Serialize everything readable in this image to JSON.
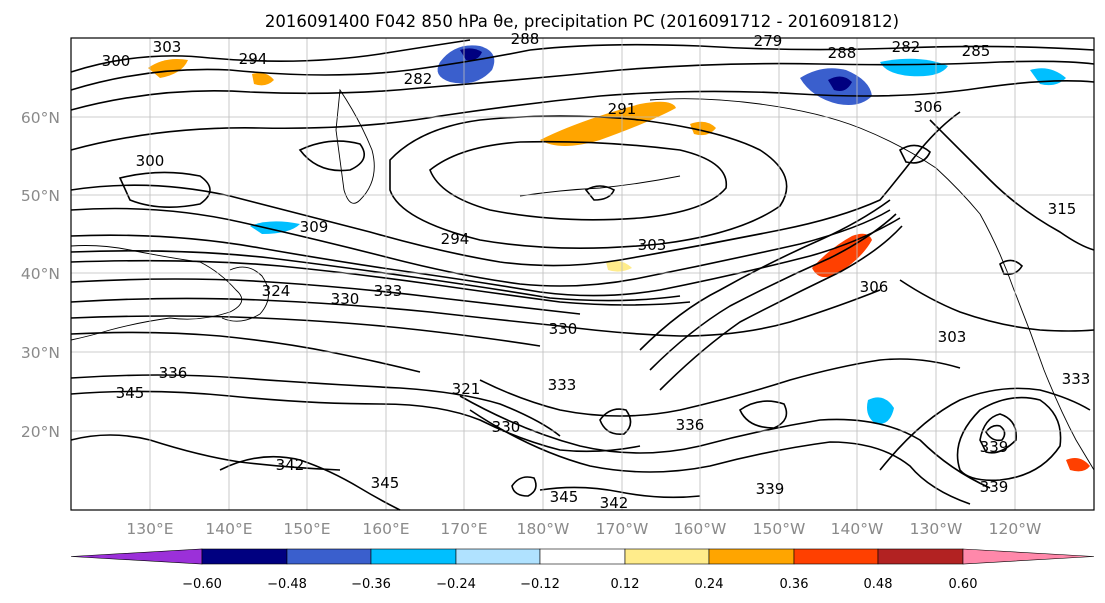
{
  "title": "2016091400 F042 850 hPa θe, precipitation PC (2016091712 - 2016091812)",
  "map": {
    "lat_labels": [
      "60°N",
      "50°N",
      "40°N",
      "30°N",
      "20°N"
    ],
    "lon_labels": [
      "130°E",
      "140°E",
      "150°E",
      "160°E",
      "170°E",
      "180°W",
      "170°W",
      "160°W",
      "150°W",
      "140°W",
      "130°W",
      "120°W"
    ],
    "contour_labels": [
      "303",
      "300",
      "288",
      "294",
      "282",
      "279",
      "288",
      "282",
      "285",
      "306",
      "300",
      "291",
      "309",
      "294",
      "303",
      "315",
      "330",
      "324",
      "333",
      "330",
      "336",
      "345",
      "321",
      "330",
      "336",
      "333",
      "342",
      "345",
      "345",
      "342",
      "339",
      "339",
      "303",
      "306",
      "333",
      "339"
    ]
  },
  "colorbar": {
    "colors": [
      "#9b30d9",
      "#000080",
      "#3a5fcd",
      "#00bfff",
      "#b0e2ff",
      "#ffffff",
      "#ffec8b",
      "#ffa500",
      "#ff4000",
      "#b22222",
      "#ff88aa"
    ],
    "tick_labels": [
      "−0.60",
      "−0.48",
      "−0.36",
      "−0.24",
      "−0.12",
      "0.12",
      "0.24",
      "0.36",
      "0.48",
      "0.60"
    ]
  }
}
